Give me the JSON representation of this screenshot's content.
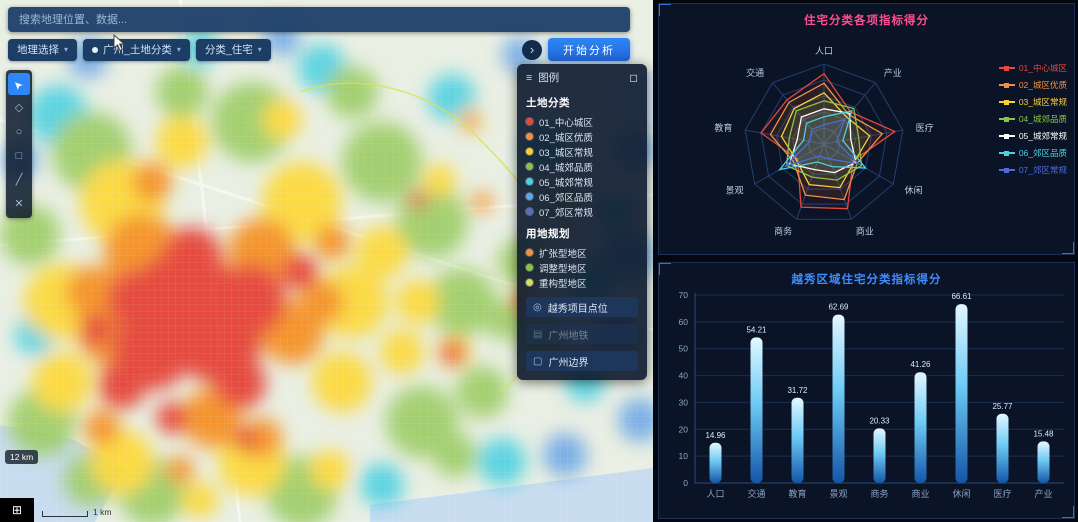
{
  "map": {
    "search": {
      "placeholder": "搜索地理位置、数据..."
    },
    "controls": {
      "geo_select_label": "地理选择",
      "dataset_label": "广州_土地分类",
      "category_label": "分类_住宅",
      "caret": "▾",
      "collapse_arrow": "›",
      "analyze_label": "开始分析"
    },
    "tools": [
      {
        "name": "select-tool",
        "glyph": "➤",
        "active": true
      },
      {
        "name": "draw-polygon-tool",
        "glyph": "◇",
        "active": false
      },
      {
        "name": "draw-circle-tool",
        "glyph": "○",
        "active": false
      },
      {
        "name": "draw-rect-tool",
        "glyph": "□",
        "active": false
      },
      {
        "name": "measure-tool",
        "glyph": "╱",
        "active": false
      },
      {
        "name": "clear-tool",
        "glyph": "✕",
        "active": false
      }
    ],
    "legend": {
      "title": "图例",
      "menu_icon": "≡",
      "collapse_icon": "◻",
      "sections": [
        {
          "title": "土地分类",
          "items": [
            {
              "label": "01_中心城区",
              "color": "#e5493d"
            },
            {
              "label": "02_城区优质",
              "color": "#f3903f"
            },
            {
              "label": "03_城区常规",
              "color": "#f7d038"
            },
            {
              "label": "04_城郊品质",
              "color": "#8bc34a"
            },
            {
              "label": "05_城郊常规",
              "color": "#4dd0e1"
            },
            {
              "label": "06_郊区品质",
              "color": "#5aa7f0"
            },
            {
              "label": "07_郊区常规",
              "color": "#5c6bc0"
            }
          ]
        },
        {
          "title": "用地规划",
          "items": [
            {
              "label": "扩张型地区",
              "color": "#f3903f"
            },
            {
              "label": "调整型地区",
              "color": "#8bc34a"
            },
            {
              "label": "重构型地区",
              "color": "#d4e157"
            }
          ]
        }
      ],
      "buttons": [
        {
          "label": "越秀项目点位",
          "icon": "◎",
          "disabled": false
        },
        {
          "label": "广州地铁",
          "icon": "▤",
          "disabled": true
        },
        {
          "label": "广州边界",
          "icon": "▢",
          "disabled": false
        }
      ]
    },
    "scale": {
      "zoom_label": "12 km",
      "scale_label": "1 km",
      "attribution_icon": "⊞"
    }
  },
  "chart_data": [
    {
      "type": "radar",
      "title": "住宅分类各项指标得分",
      "title_color": "#ff4d94",
      "indicators": [
        "人口",
        "产业",
        "医疗",
        "休闲",
        "商业",
        "商务",
        "景观",
        "教育",
        "交通"
      ],
      "max": 100,
      "legend_position": "right",
      "series": [
        {
          "name": "01_中心城区",
          "color": "#e5493d",
          "values": [
            88,
            52,
            90,
            42,
            86,
            84,
            38,
            80,
            72
          ]
        },
        {
          "name": "02_城区优质",
          "color": "#f3903f",
          "values": [
            76,
            48,
            74,
            48,
            74,
            68,
            44,
            68,
            68
          ]
        },
        {
          "name": "03_城区常规",
          "color": "#f7d038",
          "values": [
            64,
            44,
            58,
            44,
            58,
            54,
            40,
            54,
            58
          ]
        },
        {
          "name": "04_城郊品质",
          "color": "#8bc34a",
          "values": [
            54,
            58,
            44,
            54,
            48,
            44,
            54,
            44,
            54
          ]
        },
        {
          "name": "05_城郊常规",
          "color": "#ffffff",
          "values": [
            44,
            50,
            34,
            46,
            38,
            34,
            50,
            34,
            44
          ]
        },
        {
          "name": "06_郊区品质",
          "color": "#4dd0e1",
          "values": [
            34,
            54,
            24,
            60,
            30,
            24,
            64,
            26,
            34
          ]
        },
        {
          "name": "07_郊区常规",
          "color": "#4f6bd8",
          "values": [
            24,
            40,
            16,
            50,
            20,
            16,
            56,
            18,
            24
          ]
        }
      ]
    },
    {
      "type": "bar",
      "title": "越秀区域住宅分类指标得分",
      "title_color": "#3f8cff",
      "categories": [
        "人口",
        "交通",
        "教育",
        "景观",
        "商务",
        "商业",
        "休闲",
        "医疗",
        "产业"
      ],
      "values": [
        14.96,
        54.21,
        31.72,
        62.69,
        20.33,
        41.26,
        66.61,
        25.77,
        15.48
      ],
      "ylim": [
        0,
        70
      ],
      "ytick_step": 10,
      "grid": true,
      "bar_color_top": "#e3f7ff",
      "bar_color_bottom": "#1455a8"
    }
  ]
}
